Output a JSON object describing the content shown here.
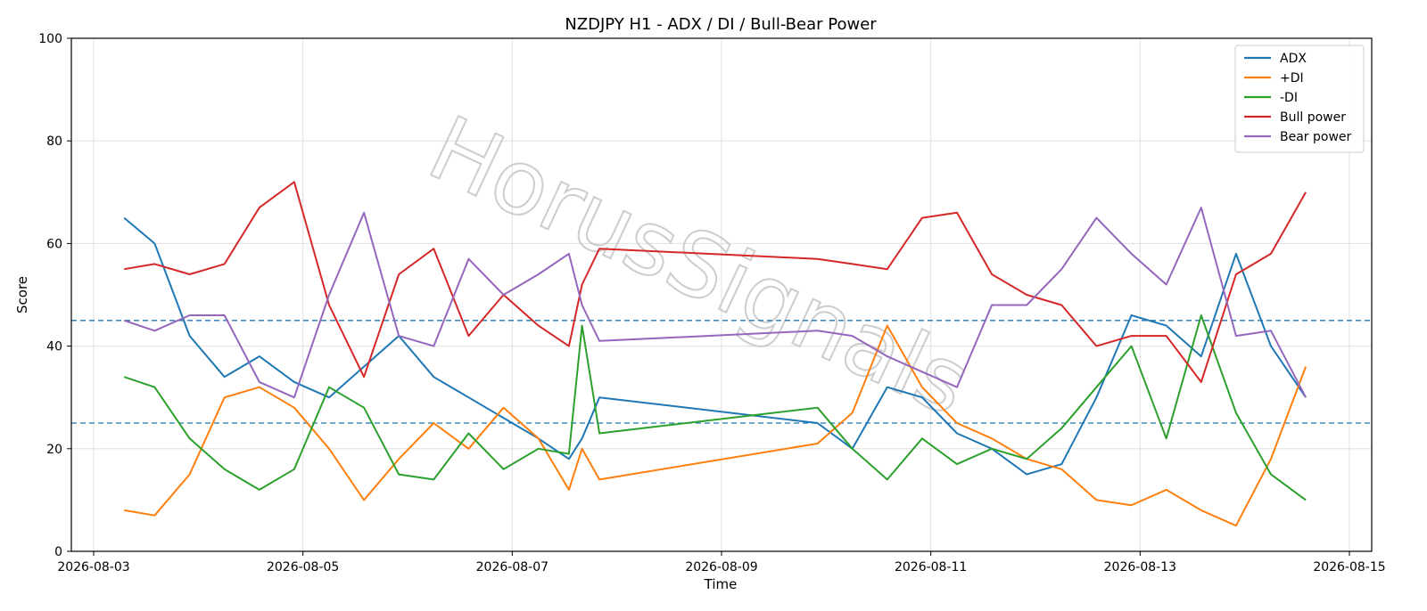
{
  "chart_data": {
    "type": "line",
    "title": "NZDJPY H1 - ADX / DI / Bull-Bear Power",
    "xlabel": "Time",
    "ylabel": "Score",
    "ylim": [
      0,
      100
    ],
    "xlim": [
      "2026-08-03 00:00",
      "2026-08-15 00:00"
    ],
    "x_tick_labels": [
      "2026-08-03",
      "2026-08-05",
      "2026-08-07",
      "2026-08-09",
      "2026-08-11",
      "2026-08-13",
      "2026-08-15"
    ],
    "y_ticks": [
      0,
      20,
      40,
      60,
      80,
      100
    ],
    "y_tick_labels": [
      "0",
      "20",
      "40",
      "60",
      "80",
      "100"
    ],
    "grid": true,
    "legend_position": "top-right",
    "reference_lines": [
      {
        "y": 45,
        "style": "dashed",
        "color": "#1f77b4"
      },
      {
        "y": 25,
        "style": "dashed",
        "color": "#1f77b4"
      }
    ],
    "watermark": "HorusSignals",
    "x": [
      "2026-08-03 07:00",
      "2026-08-03 14:00",
      "2026-08-03 22:00",
      "2026-08-04 06:00",
      "2026-08-04 14:00",
      "2026-08-04 22:00",
      "2026-08-05 06:00",
      "2026-08-05 14:00",
      "2026-08-05 22:00",
      "2026-08-06 06:00",
      "2026-08-06 14:00",
      "2026-08-06 22:00",
      "2026-08-07 06:00",
      "2026-08-07 13:00",
      "2026-08-07 16:00",
      "2026-08-07 20:00",
      "2026-08-09 22:00",
      "2026-08-10 06:00",
      "2026-08-10 14:00",
      "2026-08-10 22:00",
      "2026-08-11 06:00",
      "2026-08-11 14:00",
      "2026-08-11 22:00",
      "2026-08-12 06:00",
      "2026-08-12 14:00",
      "2026-08-12 22:00",
      "2026-08-13 06:00",
      "2026-08-13 14:00",
      "2026-08-13 22:00",
      "2026-08-14 06:00",
      "2026-08-14 14:00"
    ],
    "series": [
      {
        "name": "ADX",
        "color": "#1f77b4",
        "values": [
          65,
          60,
          42,
          34,
          38,
          33,
          30,
          36,
          42,
          34,
          30,
          26,
          22,
          18,
          22,
          30,
          25,
          20,
          32,
          30,
          23,
          20,
          15,
          17,
          30,
          46,
          44,
          38,
          58,
          40,
          30
        ]
      },
      {
        "name": "+DI",
        "color": "#ff7f0e",
        "values": [
          8,
          7,
          15,
          30,
          32,
          28,
          20,
          10,
          18,
          25,
          20,
          28,
          22,
          12,
          20,
          14,
          21,
          27,
          44,
          32,
          25,
          22,
          18,
          16,
          10,
          9,
          12,
          8,
          5,
          18,
          36
        ]
      },
      {
        "name": "-DI",
        "color": "#2ca02c",
        "values": [
          34,
          32,
          22,
          16,
          12,
          16,
          32,
          28,
          15,
          14,
          23,
          16,
          20,
          19,
          44,
          23,
          28,
          20,
          14,
          22,
          17,
          20,
          18,
          24,
          32,
          40,
          22,
          46,
          27,
          15,
          10
        ]
      },
      {
        "name": "Bull power",
        "color": "#d62728",
        "values": [
          55,
          56,
          54,
          56,
          67,
          72,
          48,
          34,
          54,
          59,
          42,
          50,
          44,
          40,
          52,
          59,
          57,
          56,
          55,
          65,
          66,
          54,
          50,
          48,
          40,
          42,
          42,
          33,
          54,
          58,
          70
        ]
      },
      {
        "name": "Bear power",
        "color": "#9467bd",
        "values": [
          45,
          43,
          46,
          46,
          33,
          30,
          50,
          66,
          42,
          40,
          57,
          50,
          54,
          58,
          48,
          41,
          43,
          42,
          38,
          35,
          32,
          48,
          48,
          55,
          65,
          58,
          52,
          67,
          42,
          43,
          30
        ]
      }
    ]
  }
}
